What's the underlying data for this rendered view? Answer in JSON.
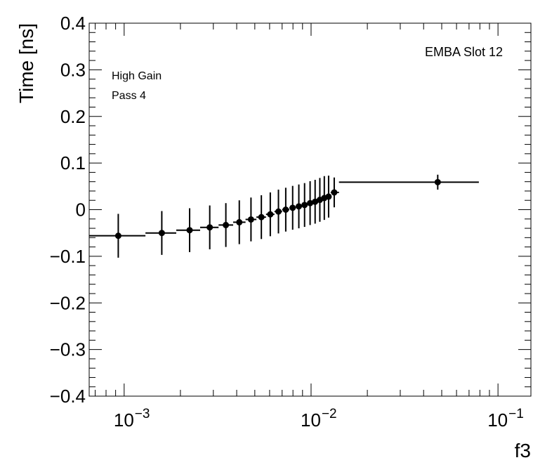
{
  "chart_data": {
    "type": "scatter",
    "subtype": "profile-with-error-bars",
    "xscale": "log",
    "xlabel": "f3",
    "ylabel": "Time [ns]",
    "xlim": [
      0.00065,
      0.15
    ],
    "ylim": [
      -0.4,
      0.4
    ],
    "y_ticks": [
      -0.4,
      -0.3,
      -0.2,
      -0.1,
      0,
      0.1,
      0.2,
      0.3,
      0.4
    ],
    "y_tick_labels": [
      "−0.4",
      "−0.3",
      "−0.2",
      "−0.1",
      "0",
      "0.1",
      "0.2",
      "0.3",
      "0.4"
    ],
    "x_tick_labels": [
      {
        "base": "10",
        "exp": "−3",
        "value": 0.001
      },
      {
        "base": "10",
        "exp": "−2",
        "value": 0.01
      },
      {
        "base": "10",
        "exp": "−1",
        "value": 0.1
      }
    ],
    "annotations": {
      "top_right": "EMBA Slot 12",
      "left_line1": "High Gain",
      "left_line2": "Pass 4"
    },
    "points": [
      {
        "x": 0.00093,
        "y": -0.056,
        "xlo": 0.00065,
        "xhi": 0.0013,
        "err": 0.047
      },
      {
        "x": 0.00159,
        "y": -0.05,
        "xlo": 0.0013,
        "xhi": 0.0019,
        "err": 0.047
      },
      {
        "x": 0.00224,
        "y": -0.044,
        "xlo": 0.0019,
        "xhi": 0.00255,
        "err": 0.047
      },
      {
        "x": 0.00287,
        "y": -0.038,
        "xlo": 0.00255,
        "xhi": 0.0032,
        "err": 0.047
      },
      {
        "x": 0.0035,
        "y": -0.033,
        "xlo": 0.0032,
        "xhi": 0.00383,
        "err": 0.047
      },
      {
        "x": 0.00413,
        "y": -0.027,
        "xlo": 0.00383,
        "xhi": 0.00446,
        "err": 0.047
      },
      {
        "x": 0.00477,
        "y": -0.021,
        "xlo": 0.00446,
        "xhi": 0.0051,
        "err": 0.047
      },
      {
        "x": 0.00542,
        "y": -0.016,
        "xlo": 0.0051,
        "xhi": 0.00574,
        "err": 0.047
      },
      {
        "x": 0.00605,
        "y": -0.01,
        "xlo": 0.00574,
        "xhi": 0.00637,
        "err": 0.047
      },
      {
        "x": 0.00669,
        "y": -0.004,
        "xlo": 0.00637,
        "xhi": 0.007,
        "err": 0.047
      },
      {
        "x": 0.00732,
        "y": 0.0,
        "xlo": 0.007,
        "xhi": 0.00765,
        "err": 0.047
      },
      {
        "x": 0.00797,
        "y": 0.004,
        "xlo": 0.00765,
        "xhi": 0.00829,
        "err": 0.047
      },
      {
        "x": 0.0086,
        "y": 0.007,
        "xlo": 0.00829,
        "xhi": 0.00891,
        "err": 0.047
      },
      {
        "x": 0.00923,
        "y": 0.01,
        "xlo": 0.00891,
        "xhi": 0.00955,
        "err": 0.047
      },
      {
        "x": 0.00988,
        "y": 0.014,
        "xlo": 0.00955,
        "xhi": 0.01019,
        "err": 0.047
      },
      {
        "x": 0.01051,
        "y": 0.017,
        "xlo": 0.01019,
        "xhi": 0.01083,
        "err": 0.047
      },
      {
        "x": 0.01114,
        "y": 0.021,
        "xlo": 0.01083,
        "xhi": 0.01146,
        "err": 0.047
      },
      {
        "x": 0.01177,
        "y": 0.025,
        "xlo": 0.01146,
        "xhi": 0.01209,
        "err": 0.047
      },
      {
        "x": 0.01241,
        "y": 0.028,
        "xlo": 0.01209,
        "xhi": 0.01273,
        "err": 0.045
      },
      {
        "x": 0.0133,
        "y": 0.037,
        "xlo": 0.01273,
        "xhi": 0.0141,
        "err": 0.032
      },
      {
        "x": 0.0476,
        "y": 0.059,
        "xlo": 0.0141,
        "xhi": 0.079,
        "err": 0.016
      }
    ]
  }
}
